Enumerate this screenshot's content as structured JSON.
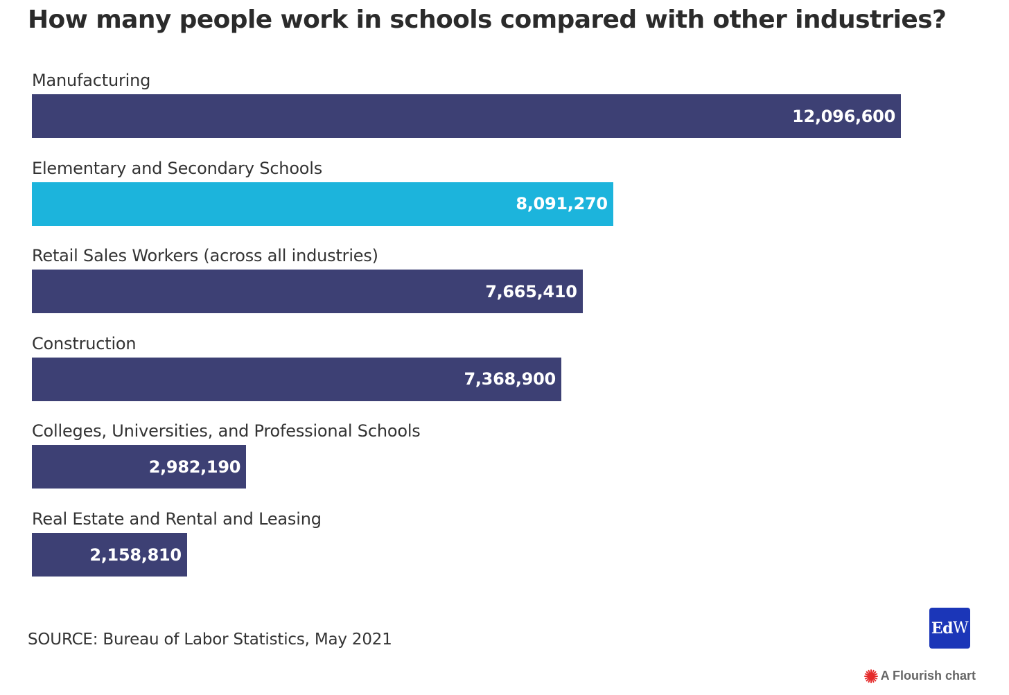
{
  "title": "How many people work in schools compared with other industries?",
  "chart_data": {
    "type": "bar",
    "orientation": "horizontal",
    "title": "How many people work in schools compared with other industries?",
    "categories": [
      "Manufacturing",
      "Elementary and Secondary Schools",
      "Retail Sales Workers (across all industries)",
      "Construction",
      "Colleges, Universities, and Professional Schools",
      "Real Estate and Rental and Leasing"
    ],
    "values": [
      12096600,
      8091270,
      7665410,
      7368900,
      2982190,
      2158810
    ],
    "value_labels": [
      "12,096,600",
      "8,091,270",
      "7,665,410",
      "7,368,900",
      "2,982,190",
      "2,158,810"
    ],
    "highlighted": [
      false,
      true,
      false,
      false,
      false,
      false
    ],
    "xlim": [
      0,
      12096600
    ],
    "grid": false,
    "colors": {
      "bar": "#3d4074",
      "highlight": "#1cb4dc",
      "value_label": "#ffffff"
    }
  },
  "source": "SOURCE: Bureau of Labor Statistics, May 2021",
  "logo": {
    "text_bold": "Ed",
    "text_regular": "W",
    "color": "#1b36b8"
  },
  "flourish": {
    "label": "A Flourish chart",
    "icon": "flourish-burst-icon",
    "icon_color": "#e52b2b"
  }
}
